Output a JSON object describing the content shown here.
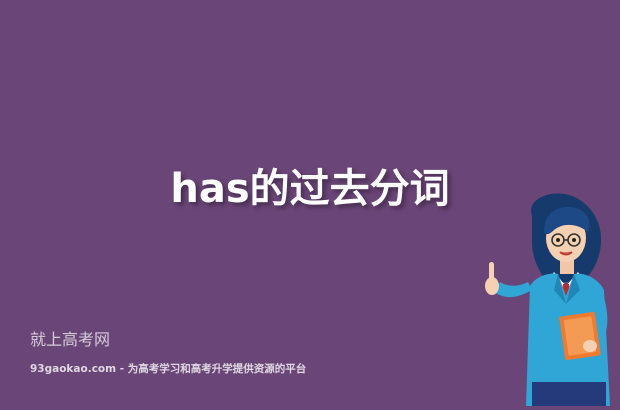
{
  "title": "has的过去分词",
  "watermark": {
    "brand": "就上高考网",
    "tagline": "93gaokao.com - 为高考学习和高考升学提供资源的平台"
  },
  "illustration": {
    "icon": "teacher-pointing-icon"
  },
  "colors": {
    "background": "#6a4577",
    "title": "#ffffff",
    "jacket": "#2fa6d6",
    "book": "#f07a2e"
  }
}
